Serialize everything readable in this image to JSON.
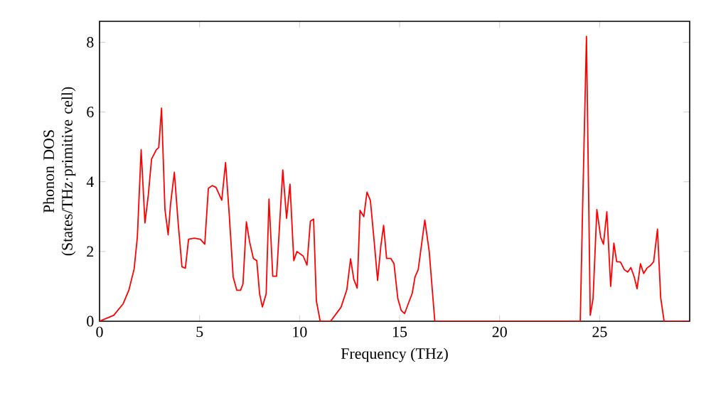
{
  "chart_data": {
    "type": "line",
    "xlabel": "Frequency (THz)",
    "ylabel": "Phonon DOS (States/THz·primitive cell)",
    "xlim": [
      0,
      29.5
    ],
    "ylim": [
      0,
      8.6
    ],
    "xticks": [
      0,
      5,
      10,
      15,
      20,
      25
    ],
    "yticks": [
      0,
      2,
      4,
      6,
      8
    ],
    "marker": "none",
    "line_style": "solid",
    "series": [
      {
        "color": "#ff0000",
        "x": [
          0,
          0.71,
          1.18,
          1.47,
          1.73,
          1.89,
          2.08,
          2.27,
          2.44,
          2.6,
          2.84,
          2.96,
          3.1,
          3.27,
          3.43,
          3.55,
          3.74,
          3.93,
          4.12,
          4.29,
          4.45,
          4.73,
          5.04,
          5.26,
          5.44,
          5.63,
          5.82,
          6.11,
          6.3,
          6.48,
          6.68,
          6.86,
          7.05,
          7.17,
          7.34,
          7.5,
          7.69,
          7.86,
          8.0,
          8.14,
          8.33,
          8.47,
          8.66,
          8.85,
          9.16,
          9.35,
          9.52,
          9.71,
          9.87,
          10.18,
          10.37,
          10.54,
          10.7,
          10.84,
          11.03,
          11.55,
          12.07,
          12.36,
          12.55,
          12.71,
          12.88,
          13.02,
          13.21,
          13.37,
          13.54,
          13.73,
          13.9,
          14.06,
          14.2,
          14.35,
          14.56,
          14.72,
          14.91,
          15.08,
          15.25,
          15.43,
          15.63,
          15.77,
          15.93,
          16.26,
          16.48,
          16.76,
          24.03,
          24.15,
          24.34,
          24.53,
          24.67,
          24.86,
          25.05,
          25.19,
          25.36,
          25.55,
          25.71,
          25.85,
          26.04,
          26.23,
          26.4,
          26.56,
          26.73,
          26.87,
          27.04,
          27.2,
          27.36,
          27.56,
          27.7,
          27.89,
          28.05,
          28.22,
          29.47
        ],
        "values": [
          0,
          0.17,
          0.5,
          0.9,
          1.5,
          2.41,
          4.92,
          2.82,
          3.63,
          4.65,
          4.92,
          4.98,
          6.11,
          3.2,
          2.48,
          3.36,
          4.27,
          2.82,
          1.56,
          1.52,
          2.35,
          2.38,
          2.35,
          2.21,
          3.81,
          3.89,
          3.84,
          3.47,
          4.55,
          3.09,
          1.27,
          0.89,
          0.89,
          1.07,
          2.85,
          2.28,
          1.8,
          1.74,
          0.79,
          0.41,
          0.79,
          3.5,
          1.29,
          1.29,
          4.34,
          2.95,
          3.93,
          1.74,
          2.0,
          1.87,
          1.61,
          2.87,
          2.93,
          0.58,
          0,
          0,
          0.4,
          0.9,
          1.79,
          1.2,
          0.95,
          3.18,
          3.0,
          3.7,
          3.46,
          2.28,
          1.17,
          2.15,
          2.75,
          1.8,
          1.8,
          1.65,
          0.65,
          0.31,
          0.22,
          0.5,
          0.8,
          1.27,
          1.48,
          2.9,
          2.0,
          0,
          0,
          3.3,
          8.17,
          0.17,
          0.65,
          3.2,
          2.41,
          2.21,
          3.14,
          1.0,
          2.24,
          1.71,
          1.7,
          1.48,
          1.41,
          1.54,
          1.27,
          0.93,
          1.65,
          1.37,
          1.52,
          1.61,
          1.71,
          2.64,
          0.68,
          0,
          0
        ]
      }
    ]
  }
}
